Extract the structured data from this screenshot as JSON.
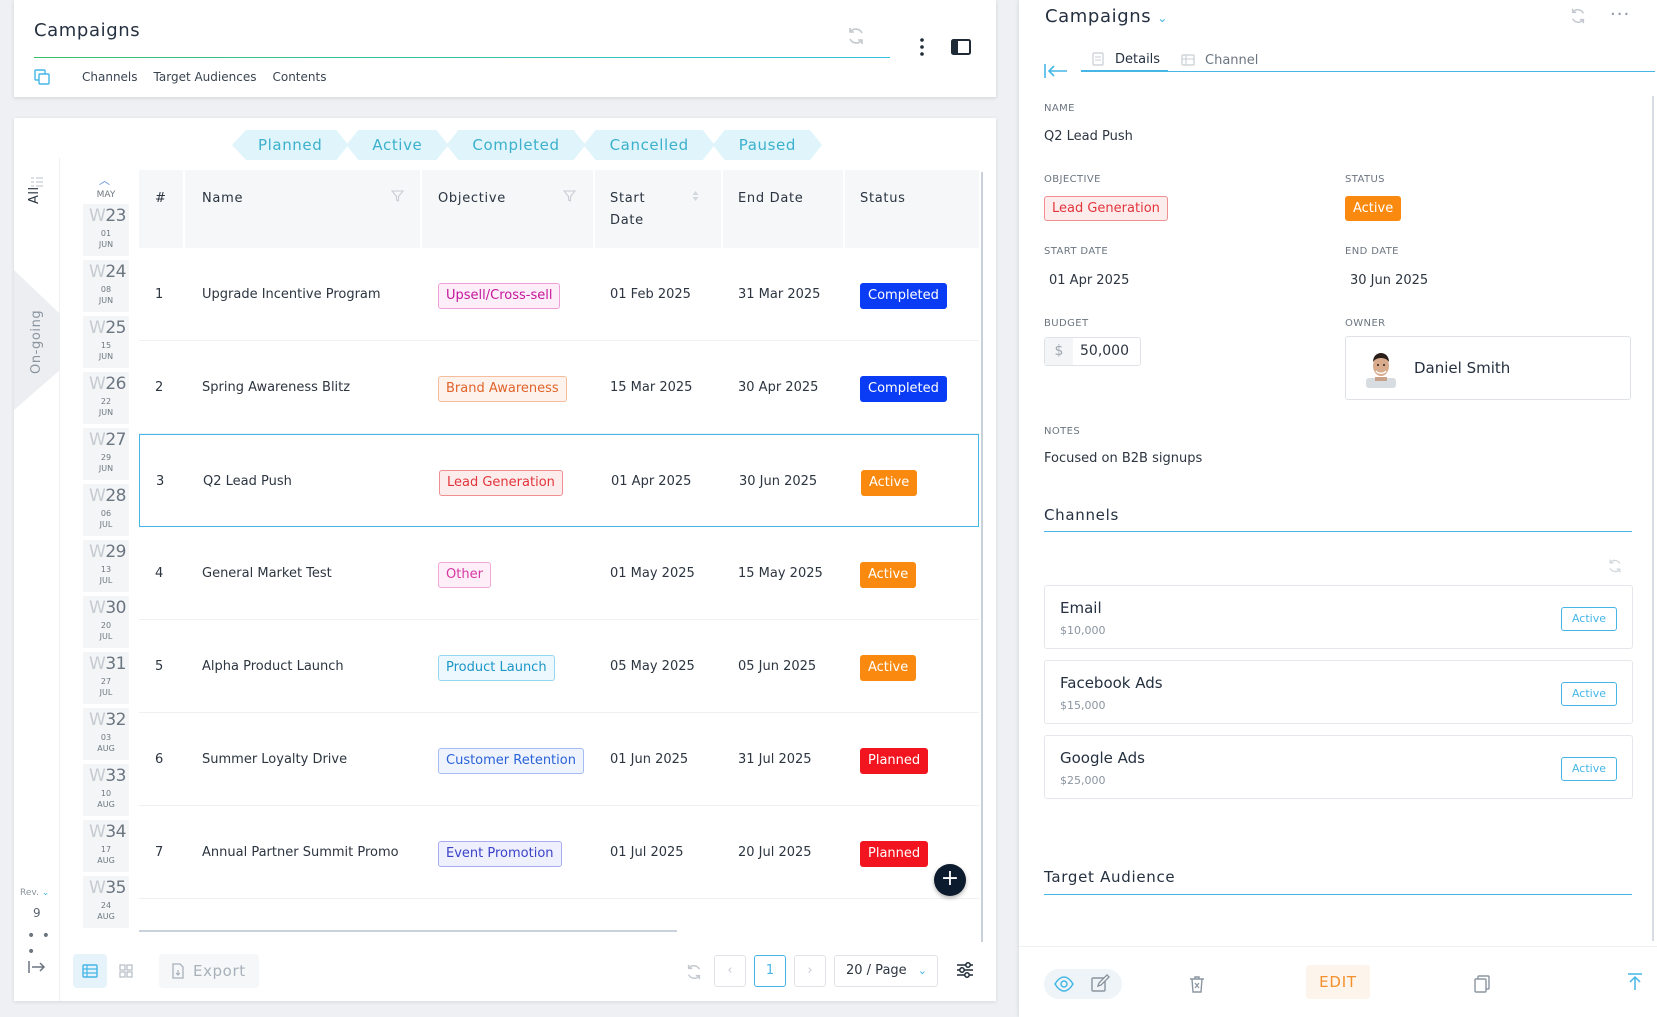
{
  "header": {
    "title": "Campaigns",
    "tabs": [
      "Channels",
      "Target Audiences",
      "Contents"
    ]
  },
  "status_tabs": [
    "Planned",
    "Active",
    "Completed",
    "Cancelled",
    "Paused"
  ],
  "side_tabs": {
    "all": "All",
    "ongoing": "On-going"
  },
  "weeks": {
    "month_label": "MAY",
    "items": [
      {
        "w": "W",
        "n": "23",
        "day": "01",
        "mon": "JUN"
      },
      {
        "w": "W",
        "n": "24",
        "day": "08",
        "mon": "JUN"
      },
      {
        "w": "W",
        "n": "25",
        "day": "15",
        "mon": "JUN"
      },
      {
        "w": "W",
        "n": "26",
        "day": "22",
        "mon": "JUN"
      },
      {
        "w": "W",
        "n": "27",
        "day": "29",
        "mon": "JUN"
      },
      {
        "w": "W",
        "n": "28",
        "day": "06",
        "mon": "JUL"
      },
      {
        "w": "W",
        "n": "29",
        "day": "13",
        "mon": "JUL"
      },
      {
        "w": "W",
        "n": "30",
        "day": "20",
        "mon": "JUL"
      },
      {
        "w": "W",
        "n": "31",
        "day": "27",
        "mon": "JUL"
      },
      {
        "w": "W",
        "n": "32",
        "day": "03",
        "mon": "AUG"
      },
      {
        "w": "W",
        "n": "33",
        "day": "10",
        "mon": "AUG"
      },
      {
        "w": "W",
        "n": "34",
        "day": "17",
        "mon": "AUG"
      },
      {
        "w": "W",
        "n": "35",
        "day": "24",
        "mon": "AUG"
      }
    ]
  },
  "table": {
    "columns": [
      "#",
      "Name",
      "Objective",
      "Start Date",
      "End Date",
      "Status"
    ],
    "rows": [
      {
        "num": "1",
        "name": "Upgrade Incentive Program",
        "objective": "Upsell/Cross-sell",
        "start": "01 Feb 2025",
        "end": "31 Mar 2025",
        "status": "Completed"
      },
      {
        "num": "2",
        "name": "Spring Awareness Blitz",
        "objective": "Brand Awareness",
        "start": "15 Mar 2025",
        "end": "30 Apr 2025",
        "status": "Completed"
      },
      {
        "num": "3",
        "name": "Q2 Lead Push",
        "objective": "Lead Generation",
        "start": "01 Apr 2025",
        "end": "30 Jun 2025",
        "status": "Active"
      },
      {
        "num": "4",
        "name": "General Market Test",
        "objective": "Other",
        "start": "01 May 2025",
        "end": "15 May 2025",
        "status": "Active"
      },
      {
        "num": "5",
        "name": "Alpha Product Launch",
        "objective": "Product Launch",
        "start": "05 May 2025",
        "end": "05 Jun 2025",
        "status": "Active"
      },
      {
        "num": "6",
        "name": "Summer Loyalty Drive",
        "objective": "Customer Retention",
        "start": "01 Jun 2025",
        "end": "31 Jul 2025",
        "status": "Planned"
      },
      {
        "num": "7",
        "name": "Annual Partner Summit Promo",
        "objective": "Event Promotion",
        "start": "01 Jul 2025",
        "end": "20 Jul 2025",
        "status": "Planned"
      }
    ]
  },
  "footer": {
    "export_label": "Export",
    "page_current": "1",
    "page_size": "20 / Page",
    "rev_label": "Rev.",
    "rev_value": "9"
  },
  "detail": {
    "title": "Campaigns",
    "tabs": [
      "Details",
      "Channel"
    ],
    "name_label": "NAME",
    "name": "Q2 Lead Push",
    "objective_label": "OBJECTIVE",
    "objective": "Lead Generation",
    "status_label": "STATUS",
    "status": "Active",
    "start_label": "START DATE",
    "start": "01 Apr 2025",
    "end_label": "END DATE",
    "end": "30 Jun 2025",
    "budget_label": "BUDGET",
    "currency": "$",
    "budget": "50,000",
    "owner_label": "OWNER",
    "owner": "Daniel Smith",
    "notes_label": "NOTES",
    "notes": "Focused on B2B signups",
    "channels_title": "Channels",
    "channels": [
      {
        "name": "Email",
        "amount": "$10,000",
        "status": "Active"
      },
      {
        "name": "Facebook Ads",
        "amount": "$15,000",
        "status": "Active"
      },
      {
        "name": "Google Ads",
        "amount": "$25,000",
        "status": "Active"
      }
    ],
    "audience_title": "Target Audience",
    "edit_label": "EDIT"
  },
  "colors": {
    "accent": "#45b6e6",
    "completed": "#0a3cf5",
    "active": "#fa8a0f",
    "planned": "#f2141e"
  }
}
